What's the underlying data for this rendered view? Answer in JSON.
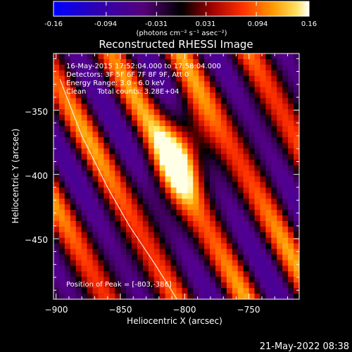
{
  "colorbar": {
    "tick_labels": [
      "-0.16",
      "-0.094",
      "-0.031",
      "0.031",
      "0.094",
      "0.16"
    ],
    "min": -0.16,
    "max": 0.16,
    "unit_label": "(photons cm⁻² s⁻¹ asec⁻²)"
  },
  "chart_data": {
    "type": "heatmap",
    "title": "Reconstructed RHESSI Image",
    "xlabel": "Heliocentric X (arcsec)",
    "ylabel": "Heliocentric Y (arcsec)",
    "xlim": [
      -902,
      -711
    ],
    "ylim": [
      -497,
      -306
    ],
    "x_ticks": [
      -900,
      -850,
      -800,
      -750
    ],
    "x_tick_labels": [
      "−900",
      "−850",
      "−800",
      "−750"
    ],
    "y_ticks": [
      -450,
      -400,
      -350
    ],
    "y_tick_labels": [
      "−450",
      "−400",
      "−350"
    ],
    "info_lines": [
      "16-May-2015 17:52:04.000 to 17:58:04.000",
      "Detectors: 3F 5F 6F 7F 8F 9F, Att 0",
      "Energy Range: 3.0 - 6.0 keV",
      "Clean     Total counts: 3.28E+04"
    ],
    "peak_label": "Position of Peak = [-803,-386]",
    "peak": {
      "x": -803,
      "y": -386,
      "value": 0.16
    },
    "colormap_min": -0.16,
    "colormap_max": 0.16,
    "limb_curve": [
      [
        -897,
        -326
      ],
      [
        -880,
        -370
      ],
      [
        -860,
        -410
      ],
      [
        -843,
        -440
      ],
      [
        -823,
        -470
      ],
      [
        -806,
        -497
      ]
    ]
  },
  "footer": {
    "date": "21-May-2022 08:38"
  }
}
